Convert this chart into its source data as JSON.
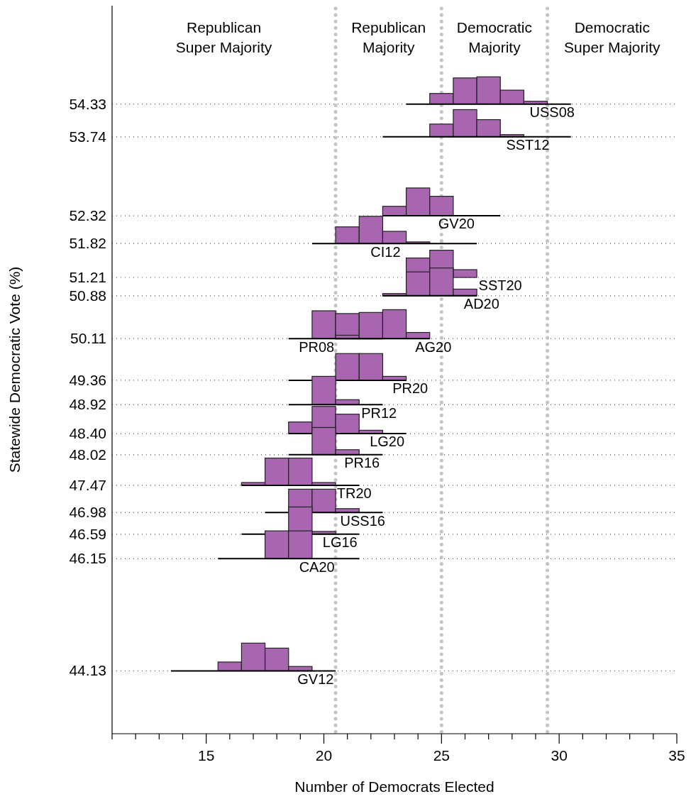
{
  "chart_data": {
    "type": "bar",
    "xlabel": "Number of Democrats Elected",
    "ylabel": "Statewide Democratic Vote (%)",
    "xlim": [
      11,
      35
    ],
    "ylim": [
      43,
      56.1
    ],
    "xticks": [
      {
        "value": 11,
        "label": null
      },
      {
        "value": 12,
        "label": null
      },
      {
        "value": 13,
        "label": null
      },
      {
        "value": 14,
        "label": null
      },
      15,
      {
        "value": 16,
        "label": null
      },
      {
        "value": 17,
        "label": null
      },
      {
        "value": 18,
        "label": null
      },
      {
        "value": 19,
        "label": null
      },
      20,
      {
        "value": 21,
        "label": null
      },
      {
        "value": 22,
        "label": null
      },
      {
        "value": 23,
        "label": null
      },
      {
        "value": 24,
        "label": null
      },
      25,
      {
        "value": 26,
        "label": null
      },
      {
        "value": 27,
        "label": null
      },
      {
        "value": 28,
        "label": null
      },
      {
        "value": 29,
        "label": null
      },
      30,
      {
        "value": 31,
        "label": null
      },
      {
        "value": 32,
        "label": null
      },
      {
        "value": 33,
        "label": null
      },
      {
        "value": 34,
        "label": null
      },
      35
    ],
    "yticks": [
      44.13,
      46.15,
      46.59,
      46.98,
      47.47,
      48.02,
      {
        "value": 48.4,
        "label": "48.40"
      },
      48.92,
      49.36,
      50.11,
      50.88,
      51.21,
      51.82,
      52.32,
      53.74,
      54.33
    ],
    "grid": "y",
    "ref_lines": [
      {
        "axis": "x",
        "value": 20.5,
        "color": "#c4c4c4",
        "line_style": "dotted"
      },
      {
        "axis": "x",
        "value": 25,
        "color": "#c4c4c4",
        "line_style": "dotted"
      },
      {
        "axis": "x",
        "value": 29.5,
        "color": "#c4c4c4",
        "line_style": "dotted"
      }
    ],
    "annotations": [
      "Republican Super Majority",
      "Republican Majority",
      "Democratic Majority",
      "Democratic Super Majority"
    ],
    "series": [
      {
        "name": "USS08",
        "color": "#a866b0",
        "x": [
          25,
          26,
          27,
          28,
          29
        ],
        "values": [
          0.19,
          0.47,
          0.49,
          0.25,
          0.05
        ],
        "base": [
          54.33,
          54.33,
          54.33,
          54.33,
          54.33
        ]
      },
      {
        "type": "line",
        "color": "#000000",
        "x": [
          23.5,
          30.5
        ],
        "values": [
          54.33,
          54.33
        ]
      },
      {
        "name": "SST12",
        "color": "#a866b0",
        "x": [
          25,
          26,
          27,
          28
        ],
        "values": [
          0.23,
          0.49,
          0.31,
          0.04
        ],
        "base": [
          53.74,
          53.74,
          53.74,
          53.74
        ]
      },
      {
        "type": "line",
        "color": "#000000",
        "x": [
          22.5,
          30.5
        ],
        "values": [
          53.74,
          53.74
        ]
      },
      {
        "name": "GV20",
        "color": "#a866b0",
        "x": [
          23,
          24,
          25
        ],
        "values": [
          0.17,
          0.5,
          0.35
        ],
        "base": [
          52.32,
          52.32,
          52.32
        ]
      },
      {
        "type": "line",
        "color": "#000000",
        "x": [
          22.5,
          27.5
        ],
        "values": [
          52.32,
          52.32
        ]
      },
      {
        "name": "CI12",
        "color": "#a866b0",
        "x": [
          21,
          22,
          23,
          24
        ],
        "values": [
          0.3,
          0.49,
          0.22,
          0.03
        ],
        "base": [
          51.82,
          51.82,
          51.82,
          51.82
        ]
      },
      {
        "type": "line",
        "color": "#000000",
        "x": [
          19.5,
          26.5
        ],
        "values": [
          51.82,
          51.82
        ]
      },
      {
        "name": "SST20",
        "color": "#a866b0",
        "x": [
          24,
          25,
          26
        ],
        "values": [
          0.35,
          0.49,
          0.14
        ],
        "base": [
          51.21,
          51.21,
          51.21
        ]
      },
      {
        "name": "AD20",
        "color": "#a866b0",
        "x": [
          23,
          24,
          25,
          26
        ],
        "values": [
          0.04,
          0.43,
          0.5,
          0.12
        ],
        "base": [
          50.88,
          50.88,
          50.88,
          50.88
        ]
      },
      {
        "type": "line",
        "color": "#000000",
        "x": [
          22.5,
          26.5
        ],
        "values": [
          50.88,
          50.88
        ]
      },
      {
        "name": "PR08",
        "color": "#a866b0",
        "x": [
          20,
          21
        ],
        "values": [
          0.5,
          0.45
        ],
        "base": [
          50.11,
          50.11
        ]
      },
      {
        "type": "line",
        "color": "#000000",
        "x": [
          18.5,
          22.5
        ],
        "values": [
          50.11,
          50.11
        ]
      },
      {
        "name": "AG20",
        "color": "#a866b0",
        "x": [
          21,
          22,
          23,
          24
        ],
        "values": [
          0.06,
          0.47,
          0.52,
          0.11
        ],
        "base": [
          50.11,
          50.11,
          50.11,
          50.11
        ]
      },
      {
        "type": "line",
        "color": "#000000",
        "x": [
          20.5,
          24.5
        ],
        "values": [
          50.11,
          50.11
        ]
      },
      {
        "name": "PR20",
        "color": "#a866b0",
        "x": [
          21,
          22,
          23
        ],
        "values": [
          0.48,
          0.48,
          0.07
        ],
        "base": [
          49.36,
          49.36,
          49.36
        ]
      },
      {
        "type": "line",
        "color": "#000000",
        "x": [
          18.5,
          23.5
        ],
        "values": [
          49.36,
          49.36
        ]
      },
      {
        "name": "PR12",
        "color": "#a866b0",
        "x": [
          20,
          21
        ],
        "values": [
          0.51,
          0.09
        ],
        "base": [
          48.92,
          48.92
        ]
      },
      {
        "type": "line",
        "color": "#000000",
        "x": [
          18.5,
          22.5
        ],
        "values": [
          48.92,
          48.92
        ]
      },
      {
        "name": "LG20",
        "color": "#a866b0",
        "x": [
          19,
          20,
          21,
          22
        ],
        "values": [
          0.21,
          0.49,
          0.35,
          0.06
        ],
        "base": [
          48.4,
          48.4,
          48.4,
          48.4
        ]
      },
      {
        "type": "line",
        "color": "#000000",
        "x": [
          18.5,
          23.5
        ],
        "values": [
          48.4,
          48.4
        ]
      },
      {
        "name": "PR16",
        "color": "#a866b0",
        "x": [
          20,
          21
        ],
        "values": [
          0.49,
          0.09
        ],
        "base": [
          48.02,
          48.02
        ]
      },
      {
        "type": "line",
        "color": "#000000",
        "x": [
          18.5,
          22.5
        ],
        "values": [
          48.02,
          48.02
        ]
      },
      {
        "name": "TR20",
        "color": "#a866b0",
        "x": [
          17,
          18,
          19,
          20
        ],
        "values": [
          0.05,
          0.49,
          0.49,
          0.05
        ],
        "base": [
          47.47,
          47.47,
          47.47,
          47.47
        ]
      },
      {
        "type": "line",
        "color": "#000000",
        "x": [
          16.5,
          21.5
        ],
        "values": [
          47.47,
          47.47
        ]
      },
      {
        "name": "USS16",
        "color": "#a866b0",
        "x": [
          19,
          20,
          21
        ],
        "values": [
          0.42,
          0.42,
          0.07
        ],
        "base": [
          46.98,
          46.98,
          46.98
        ]
      },
      {
        "type": "line",
        "color": "#000000",
        "x": [
          17.5,
          22.5
        ],
        "values": [
          46.98,
          46.98
        ]
      },
      {
        "name": "LG16",
        "color": "#a866b0",
        "x": [
          19,
          20
        ],
        "values": [
          0.49,
          0.05
        ],
        "base": [
          46.59,
          46.59
        ]
      },
      {
        "type": "line",
        "color": "#000000",
        "x": [
          16.5,
          21.5
        ],
        "values": [
          46.59,
          46.59
        ]
      },
      {
        "name": "CA20",
        "color": "#a866b0",
        "x": [
          18,
          19
        ],
        "values": [
          0.5,
          0.5
        ],
        "base": [
          46.15,
          46.15
        ]
      },
      {
        "type": "line",
        "color": "#000000",
        "x": [
          15.5,
          21.5
        ],
        "values": [
          46.15,
          46.15
        ]
      },
      {
        "name": "GV12",
        "color": "#a866b0",
        "x": [
          16,
          17,
          18,
          19
        ],
        "values": [
          0.16,
          0.5,
          0.41,
          0.08
        ],
        "base": [
          44.13,
          44.13,
          44.13,
          44.13
        ]
      },
      {
        "type": "line",
        "color": "#000000",
        "x": [
          13.5,
          20.5
        ],
        "values": [
          44.13,
          44.13
        ]
      }
    ]
  }
}
